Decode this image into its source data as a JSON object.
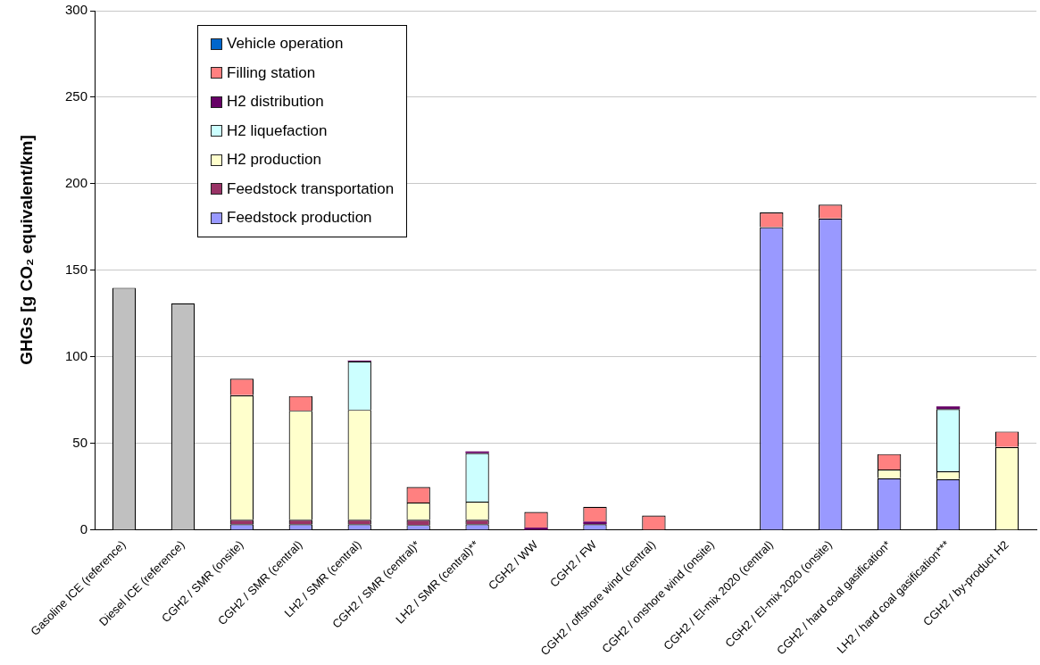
{
  "chart_data": {
    "type": "bar",
    "stacked": true,
    "ylabel": "GHGs [g CO₂ equivalent/km]",
    "categories": [
      "Gasoline ICE (reference)",
      "Diesel ICE (reference)",
      "CGH2 / SMR (onsite)",
      "CGH2 / SMR (central)",
      "LH2 / SMR (central)",
      "CGH2 / SMR (central)*",
      "LH2 / SMR (central)**",
      "CGH2 / WW",
      "CGH2 / FW",
      "CGH2 / offshore wind (central)",
      "CGH2 / onshore wind (onsite)",
      "CGH2 / El-mix 2020 (central)",
      "CGH2 / El-mix 2020 (onsite)",
      "CGH2 / hard coal gasification*",
      "LH2 / hard coal gasification***",
      "CGH2 / by-product H2"
    ],
    "series": [
      {
        "color": "#c0c0c0",
        "values": [
          140,
          131,
          0,
          0,
          0,
          0,
          0,
          0,
          0,
          0,
          0,
          0,
          0,
          0,
          0,
          0
        ]
      },
      {
        "name": "Feedstock production",
        "color": "#9999ff",
        "values": [
          0,
          0,
          3.5,
          3.5,
          3.5,
          3,
          3.5,
          0,
          3.5,
          0,
          0,
          175,
          180,
          30,
          29.5,
          0
        ]
      },
      {
        "name": "Feedstock transportation",
        "color": "#993366",
        "values": [
          0,
          0,
          2.5,
          2.5,
          2.5,
          3,
          2.5,
          0,
          0,
          0,
          0,
          0,
          0,
          0,
          0,
          0
        ]
      },
      {
        "name": "H2 production",
        "color": "#ffffcc",
        "values": [
          0,
          0,
          72,
          63,
          63.5,
          10,
          10.5,
          0,
          0,
          0,
          0,
          0,
          0,
          5,
          4.5,
          48
        ]
      },
      {
        "name": "H2 liquefaction",
        "color": "#ccffff",
        "values": [
          0,
          0,
          0,
          0,
          28,
          0,
          28,
          0,
          0,
          0,
          0,
          0,
          0,
          0,
          36,
          0
        ]
      },
      {
        "name": "H2 distribution",
        "color": "#660066",
        "values": [
          0,
          0,
          0,
          0,
          0.5,
          0,
          1,
          1.5,
          1.5,
          0,
          0,
          0,
          0,
          0,
          1.5,
          0
        ]
      },
      {
        "name": "Filling station",
        "color": "#ff8080",
        "values": [
          0,
          0,
          9.5,
          8.5,
          0,
          9,
          0,
          9,
          8.5,
          8.5,
          0,
          8.5,
          8,
          9,
          0,
          9
        ]
      },
      {
        "name": "Vehicle operation",
        "color": "#0066cc",
        "values": [
          0,
          0,
          0,
          0,
          0,
          0,
          0,
          0,
          0,
          0,
          0,
          0,
          0,
          0,
          0,
          0
        ]
      }
    ],
    "ylim": [
      0,
      300
    ],
    "yticks": [
      0,
      50,
      100,
      150,
      200,
      250,
      300
    ],
    "grid": "y",
    "legend": "top left"
  }
}
